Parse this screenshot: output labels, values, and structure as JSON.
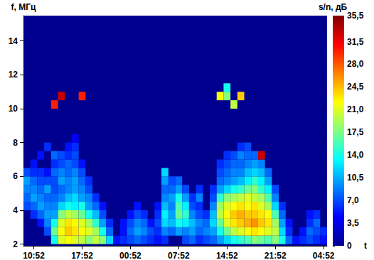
{
  "chart_data": {
    "type": "heatmap",
    "x_label": "t",
    "y_label": "f, МГц",
    "xlim": [
      -1.5,
      42.5
    ],
    "xticks": [
      {
        "value": 0,
        "label": "10:52"
      },
      {
        "value": 7,
        "label": "17:52"
      },
      {
        "value": 14,
        "label": "00:52"
      },
      {
        "value": 21,
        "label": "07:52"
      },
      {
        "value": 28,
        "label": "14:52"
      },
      {
        "value": 35,
        "label": "21:52"
      },
      {
        "value": 42,
        "label": "04:52"
      }
    ],
    "ylim": [
      1.9,
      15.5
    ],
    "yticks": [
      2,
      4,
      6,
      8,
      10,
      12,
      14
    ],
    "grid": false,
    "x_step": 1,
    "y_step": 0.5,
    "cells": [
      [
        -1,
        4.25,
        7
      ],
      [
        -1,
        4.75,
        8
      ],
      [
        -1,
        5.25,
        9
      ],
      [
        -1,
        5.75,
        10
      ],
      [
        -1,
        6.25,
        7
      ],
      [
        0,
        3.75,
        6
      ],
      [
        0,
        4.25,
        8
      ],
      [
        0,
        4.75,
        10
      ],
      [
        0,
        5.25,
        9
      ],
      [
        0,
        5.75,
        8
      ],
      [
        0,
        6.25,
        6
      ],
      [
        0,
        6.75,
        5
      ],
      [
        1,
        3.25,
        5
      ],
      [
        1,
        3.75,
        8
      ],
      [
        1,
        4.25,
        10
      ],
      [
        1,
        4.75,
        9
      ],
      [
        1,
        5.25,
        8
      ],
      [
        1,
        5.75,
        7
      ],
      [
        1,
        6.25,
        6
      ],
      [
        1,
        7.25,
        5
      ],
      [
        2,
        2.75,
        7
      ],
      [
        2,
        3.25,
        9
      ],
      [
        2,
        3.75,
        10
      ],
      [
        2,
        4.25,
        9
      ],
      [
        2,
        4.75,
        8
      ],
      [
        2,
        5.25,
        10
      ],
      [
        2,
        5.75,
        7
      ],
      [
        2,
        6.25,
        5
      ],
      [
        2,
        7.75,
        6
      ],
      [
        3,
        2.25,
        14
      ],
      [
        3,
        2.75,
        17
      ],
      [
        3,
        3.25,
        14
      ],
      [
        3,
        3.75,
        10
      ],
      [
        3,
        4.25,
        9
      ],
      [
        3,
        4.75,
        8
      ],
      [
        3,
        5.25,
        7
      ],
      [
        3,
        5.75,
        7
      ],
      [
        3,
        6.25,
        8
      ],
      [
        3,
        6.75,
        6
      ],
      [
        3,
        7.25,
        8
      ],
      [
        3,
        10.25,
        30
      ],
      [
        4,
        2.25,
        21
      ],
      [
        4,
        2.75,
        22
      ],
      [
        4,
        3.25,
        21
      ],
      [
        4,
        3.75,
        18
      ],
      [
        4,
        4.25,
        12
      ],
      [
        4,
        4.75,
        9
      ],
      [
        4,
        5.25,
        8
      ],
      [
        4,
        5.75,
        10
      ],
      [
        4,
        6.25,
        9
      ],
      [
        4,
        6.75,
        7
      ],
      [
        4,
        7.25,
        7
      ],
      [
        4,
        10.75,
        33
      ],
      [
        5,
        2.25,
        22
      ],
      [
        5,
        2.75,
        24
      ],
      [
        5,
        3.25,
        23
      ],
      [
        5,
        3.75,
        20
      ],
      [
        5,
        4.25,
        14
      ],
      [
        5,
        4.75,
        11
      ],
      [
        5,
        5.25,
        9
      ],
      [
        5,
        5.75,
        9
      ],
      [
        5,
        6.25,
        8
      ],
      [
        5,
        6.75,
        8
      ],
      [
        5,
        7.25,
        6
      ],
      [
        5,
        7.75,
        5
      ],
      [
        6,
        2.25,
        21
      ],
      [
        6,
        2.75,
        23
      ],
      [
        6,
        3.25,
        22
      ],
      [
        6,
        3.75,
        19
      ],
      [
        6,
        4.25,
        13
      ],
      [
        6,
        4.75,
        12
      ],
      [
        6,
        5.25,
        10
      ],
      [
        6,
        5.75,
        10
      ],
      [
        6,
        6.25,
        9
      ],
      [
        6,
        6.75,
        7
      ],
      [
        6,
        7.25,
        7
      ],
      [
        6,
        7.75,
        6
      ],
      [
        6,
        8.25,
        4
      ],
      [
        7,
        2.25,
        20
      ],
      [
        7,
        2.75,
        22
      ],
      [
        7,
        3.25,
        21
      ],
      [
        7,
        3.75,
        17
      ],
      [
        7,
        4.25,
        14
      ],
      [
        7,
        4.75,
        10
      ],
      [
        7,
        5.25,
        9
      ],
      [
        7,
        5.75,
        8
      ],
      [
        7,
        6.25,
        7
      ],
      [
        7,
        6.75,
        5
      ],
      [
        7,
        10.75,
        30
      ],
      [
        8,
        2.25,
        18
      ],
      [
        8,
        2.75,
        21
      ],
      [
        8,
        3.25,
        19
      ],
      [
        8,
        3.75,
        14
      ],
      [
        8,
        4.25,
        10
      ],
      [
        8,
        4.75,
        9
      ],
      [
        8,
        5.25,
        7
      ],
      [
        8,
        5.75,
        6
      ],
      [
        9,
        2.25,
        20
      ],
      [
        9,
        2.75,
        19
      ],
      [
        9,
        3.25,
        15
      ],
      [
        9,
        3.75,
        11
      ],
      [
        9,
        4.25,
        8
      ],
      [
        9,
        4.75,
        6
      ],
      [
        10,
        2.25,
        18
      ],
      [
        10,
        2.75,
        14
      ],
      [
        10,
        3.25,
        10
      ],
      [
        10,
        3.75,
        7
      ],
      [
        10,
        4.25,
        5
      ],
      [
        11,
        2.25,
        12
      ],
      [
        11,
        2.75,
        8
      ],
      [
        11,
        3.25,
        6
      ],
      [
        12,
        2.25,
        5
      ],
      [
        13,
        2.25,
        6
      ],
      [
        13,
        2.75,
        5
      ],
      [
        13,
        3.25,
        5
      ],
      [
        14,
        2.25,
        7
      ],
      [
        14,
        2.75,
        8
      ],
      [
        14,
        3.25,
        7
      ],
      [
        14,
        3.75,
        5
      ],
      [
        15,
        2.25,
        8
      ],
      [
        15,
        2.75,
        10
      ],
      [
        15,
        3.25,
        9
      ],
      [
        15,
        3.75,
        7
      ],
      [
        15,
        4.25,
        5
      ],
      [
        16,
        2.25,
        7
      ],
      [
        16,
        2.75,
        9
      ],
      [
        16,
        3.25,
        8
      ],
      [
        16,
        3.75,
        6
      ],
      [
        17,
        2.25,
        6
      ],
      [
        17,
        2.75,
        7
      ],
      [
        17,
        3.25,
        5
      ],
      [
        18,
        2.25,
        5
      ],
      [
        18,
        2.75,
        6
      ],
      [
        18,
        3.25,
        7
      ],
      [
        18,
        3.75,
        6
      ],
      [
        18,
        4.25,
        5
      ],
      [
        19,
        2.25,
        6
      ],
      [
        19,
        2.75,
        9
      ],
      [
        19,
        3.25,
        12
      ],
      [
        19,
        3.75,
        13
      ],
      [
        19,
        4.25,
        11
      ],
      [
        19,
        4.75,
        9
      ],
      [
        19,
        5.25,
        8
      ],
      [
        19,
        5.75,
        10
      ],
      [
        19,
        6.25,
        12
      ],
      [
        20,
        2.75,
        8
      ],
      [
        20,
        3.25,
        11
      ],
      [
        20,
        3.75,
        10
      ],
      [
        20,
        4.25,
        9
      ],
      [
        20,
        4.75,
        10
      ],
      [
        20,
        5.25,
        8
      ],
      [
        20,
        5.75,
        7
      ],
      [
        21,
        2.75,
        10
      ],
      [
        21,
        3.25,
        14
      ],
      [
        21,
        3.75,
        17
      ],
      [
        21,
        4.25,
        16
      ],
      [
        21,
        4.75,
        14
      ],
      [
        21,
        5.25,
        10
      ],
      [
        21,
        5.75,
        8
      ],
      [
        22,
        2.25,
        7
      ],
      [
        22,
        2.75,
        9
      ],
      [
        22,
        3.25,
        13
      ],
      [
        22,
        3.75,
        15
      ],
      [
        22,
        4.25,
        13
      ],
      [
        22,
        4.75,
        10
      ],
      [
        22,
        5.25,
        7
      ],
      [
        23,
        2.25,
        8
      ],
      [
        23,
        2.75,
        10
      ],
      [
        23,
        3.25,
        11
      ],
      [
        23,
        3.75,
        9
      ],
      [
        23,
        4.25,
        7
      ],
      [
        23,
        4.75,
        6
      ],
      [
        24,
        2.25,
        6
      ],
      [
        24,
        2.75,
        8
      ],
      [
        24,
        3.25,
        9
      ],
      [
        24,
        3.75,
        7
      ],
      [
        24,
        4.25,
        6
      ],
      [
        24,
        4.75,
        9
      ],
      [
        24,
        5.25,
        6
      ],
      [
        25,
        2.25,
        7
      ],
      [
        25,
        2.75,
        9
      ],
      [
        25,
        3.25,
        8
      ],
      [
        25,
        3.75,
        6
      ],
      [
        26,
        2.25,
        8
      ],
      [
        26,
        2.75,
        10
      ],
      [
        26,
        3.25,
        12
      ],
      [
        26,
        3.75,
        11
      ],
      [
        26,
        4.25,
        9
      ],
      [
        26,
        4.75,
        7
      ],
      [
        26,
        5.25,
        6
      ],
      [
        27,
        2.25,
        10
      ],
      [
        27,
        2.75,
        14
      ],
      [
        27,
        3.25,
        17
      ],
      [
        27,
        3.75,
        20
      ],
      [
        27,
        4.25,
        19
      ],
      [
        27,
        4.75,
        15
      ],
      [
        27,
        5.25,
        10
      ],
      [
        27,
        5.75,
        8
      ],
      [
        27,
        6.25,
        7
      ],
      [
        27,
        6.75,
        6
      ],
      [
        27,
        10.75,
        22
      ],
      [
        28,
        2.25,
        12
      ],
      [
        28,
        2.75,
        17
      ],
      [
        28,
        3.25,
        21
      ],
      [
        28,
        3.75,
        22
      ],
      [
        28,
        4.25,
        21
      ],
      [
        28,
        4.75,
        18
      ],
      [
        28,
        5.25,
        12
      ],
      [
        28,
        5.75,
        9
      ],
      [
        28,
        6.25,
        8
      ],
      [
        28,
        6.75,
        7
      ],
      [
        28,
        7.25,
        6
      ],
      [
        28,
        10.75,
        18
      ],
      [
        28,
        11.25,
        14
      ],
      [
        29,
        2.25,
        14
      ],
      [
        29,
        2.75,
        20
      ],
      [
        29,
        3.25,
        23
      ],
      [
        29,
        3.75,
        24
      ],
      [
        29,
        4.25,
        22
      ],
      [
        29,
        4.75,
        19
      ],
      [
        29,
        5.25,
        14
      ],
      [
        29,
        5.75,
        10
      ],
      [
        29,
        6.25,
        9
      ],
      [
        29,
        6.75,
        8
      ],
      [
        29,
        7.25,
        7
      ],
      [
        29,
        10.25,
        20
      ],
      [
        30,
        2.25,
        15
      ],
      [
        30,
        2.75,
        21
      ],
      [
        30,
        3.25,
        24
      ],
      [
        30,
        3.75,
        25
      ],
      [
        30,
        4.25,
        23
      ],
      [
        30,
        4.75,
        20
      ],
      [
        30,
        5.25,
        15
      ],
      [
        30,
        5.75,
        11
      ],
      [
        30,
        6.25,
        9
      ],
      [
        30,
        6.75,
        8
      ],
      [
        30,
        7.25,
        9
      ],
      [
        30,
        7.75,
        6
      ],
      [
        30,
        10.75,
        24
      ],
      [
        31,
        2.25,
        16
      ],
      [
        31,
        2.75,
        22
      ],
      [
        31,
        3.25,
        25
      ],
      [
        31,
        3.75,
        24
      ],
      [
        31,
        4.25,
        22
      ],
      [
        31,
        4.75,
        21
      ],
      [
        31,
        5.25,
        17
      ],
      [
        31,
        5.75,
        13
      ],
      [
        31,
        6.25,
        11
      ],
      [
        31,
        6.75,
        9
      ],
      [
        31,
        7.25,
        8
      ],
      [
        31,
        7.75,
        7
      ],
      [
        32,
        2.25,
        18
      ],
      [
        32,
        2.75,
        23
      ],
      [
        32,
        3.25,
        26
      ],
      [
        32,
        3.75,
        24
      ],
      [
        32,
        4.25,
        23
      ],
      [
        32,
        4.75,
        20
      ],
      [
        32,
        5.25,
        18
      ],
      [
        32,
        5.75,
        15
      ],
      [
        32,
        6.25,
        12
      ],
      [
        32,
        6.75,
        10
      ],
      [
        32,
        7.25,
        8
      ],
      [
        33,
        2.25,
        17
      ],
      [
        33,
        2.75,
        22
      ],
      [
        33,
        3.25,
        24
      ],
      [
        33,
        3.75,
        23
      ],
      [
        33,
        4.25,
        21
      ],
      [
        33,
        4.75,
        19
      ],
      [
        33,
        5.25,
        15
      ],
      [
        33,
        5.75,
        13
      ],
      [
        33,
        6.25,
        11
      ],
      [
        33,
        6.75,
        9
      ],
      [
        33,
        7.25,
        33
      ],
      [
        34,
        2.25,
        16
      ],
      [
        34,
        2.75,
        21
      ],
      [
        34,
        3.25,
        23
      ],
      [
        34,
        3.75,
        22
      ],
      [
        34,
        4.25,
        19
      ],
      [
        34,
        4.75,
        16
      ],
      [
        34,
        5.25,
        13
      ],
      [
        34,
        5.75,
        10
      ],
      [
        34,
        6.25,
        8
      ],
      [
        35,
        2.25,
        18
      ],
      [
        35,
        2.75,
        20
      ],
      [
        35,
        3.25,
        19
      ],
      [
        35,
        3.75,
        16
      ],
      [
        35,
        4.25,
        12
      ],
      [
        35,
        4.75,
        9
      ],
      [
        35,
        5.25,
        7
      ],
      [
        36,
        2.25,
        14
      ],
      [
        36,
        2.75,
        12
      ],
      [
        36,
        3.25,
        10
      ],
      [
        36,
        3.75,
        8
      ],
      [
        36,
        4.25,
        6
      ],
      [
        37,
        2.25,
        8
      ],
      [
        37,
        2.75,
        6
      ],
      [
        37,
        3.25,
        5
      ],
      [
        38,
        2.25,
        5
      ],
      [
        39,
        2.25,
        6
      ],
      [
        39,
        2.75,
        5
      ],
      [
        40,
        2.25,
        7
      ],
      [
        40,
        2.75,
        8
      ],
      [
        40,
        3.25,
        6
      ],
      [
        40,
        3.75,
        5
      ],
      [
        41,
        2.25,
        6
      ],
      [
        41,
        2.75,
        7
      ],
      [
        41,
        3.25,
        8
      ],
      [
        41,
        3.75,
        6
      ],
      [
        42,
        2.25,
        5
      ],
      [
        42,
        2.75,
        6
      ]
    ],
    "colorbar": {
      "label": "s/n, дБ",
      "range": [
        0,
        35.5
      ],
      "ticks": [
        0,
        {
          "value": 3.5,
          "label": "3,5"
        },
        {
          "value": 7,
          "label": "7,0"
        },
        {
          "value": 10.5,
          "label": "10,5"
        },
        {
          "value": 14,
          "label": "14,0"
        },
        {
          "value": 17.5,
          "label": "17,5"
        },
        {
          "value": 21,
          "label": "21,0"
        },
        {
          "value": 24.5,
          "label": "24,5"
        },
        {
          "value": 28,
          "label": "28,0"
        },
        {
          "value": 31.5,
          "label": "31,5"
        },
        {
          "value": 35.5,
          "label": "35,5"
        }
      ]
    }
  }
}
